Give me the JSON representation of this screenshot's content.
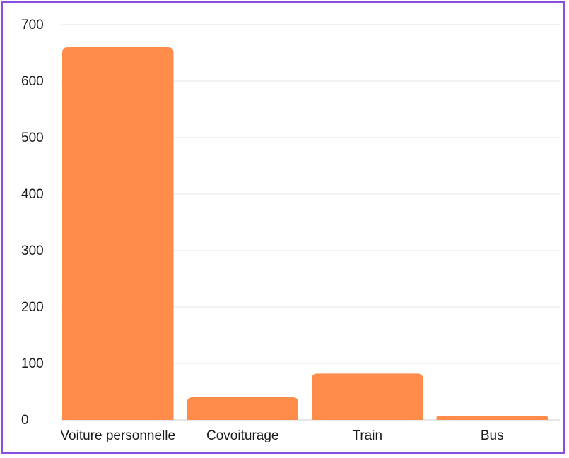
{
  "chart_data": {
    "type": "bar",
    "title": "",
    "xlabel": "",
    "ylabel": "",
    "categories": [
      "Voiture personnelle",
      "Covoiturage",
      "Train",
      "Bus"
    ],
    "values": [
      660,
      40,
      82,
      7
    ],
    "ylim": [
      0,
      700
    ],
    "yticks": [
      "0",
      "100",
      "200",
      "300",
      "400",
      "500",
      "600",
      "700"
    ],
    "grid": true,
    "legend": "none",
    "bar_color": "#ff8c4a",
    "frame_color": "#8a4fe0"
  }
}
